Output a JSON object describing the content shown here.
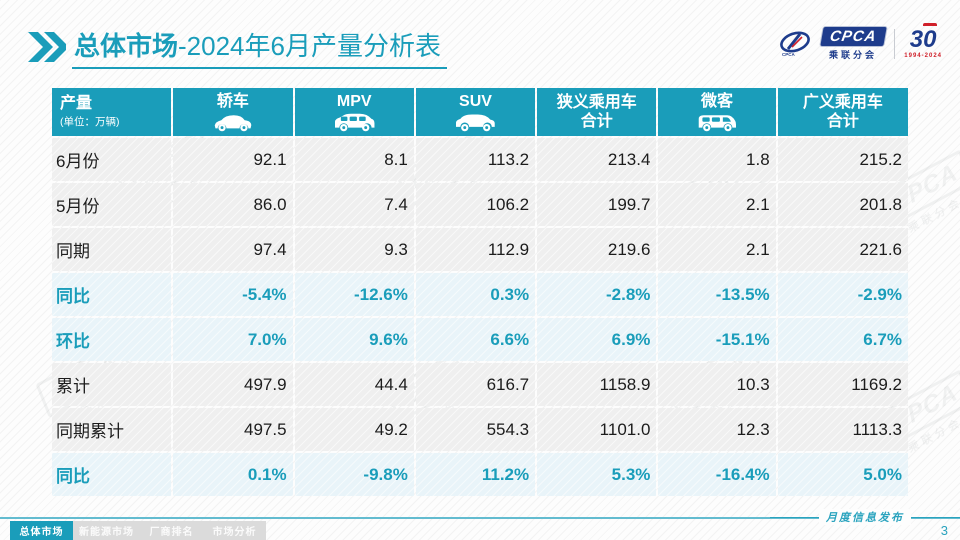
{
  "header": {
    "title_bold": "总体市场",
    "title_rest": "-2024年6月产量分析表",
    "logo": {
      "cpca": "CPCA",
      "cpca_sub": "乘联分会",
      "anniversary_3": "3",
      "anniversary_0": "0",
      "anniversary_sub": "1994-2024"
    }
  },
  "table": {
    "corner": {
      "title": "产量",
      "subtitle": "(单位：万辆)"
    },
    "columns": [
      {
        "label": "轿车",
        "icon": "sedan-icon"
      },
      {
        "label": "MPV",
        "icon": "mpv-icon"
      },
      {
        "label": "SUV",
        "icon": "suv-icon"
      },
      {
        "label": "狭义乘用车",
        "label2": "合计"
      },
      {
        "label": "微客",
        "icon": "microvan-icon"
      },
      {
        "label": "广义乘用车",
        "label2": "合计"
      }
    ],
    "rows": [
      {
        "label": "6月份",
        "type": "plain",
        "values": [
          "92.1",
          "8.1",
          "113.2",
          "213.4",
          "1.8",
          "215.2"
        ]
      },
      {
        "label": "5月份",
        "type": "plain",
        "values": [
          "86.0",
          "7.4",
          "106.2",
          "199.7",
          "2.1",
          "201.8"
        ]
      },
      {
        "label": "同期",
        "type": "plain",
        "values": [
          "97.4",
          "9.3",
          "112.9",
          "219.6",
          "2.1",
          "221.6"
        ]
      },
      {
        "label": "同比",
        "type": "pct",
        "values": [
          "-5.4%",
          "-12.6%",
          "0.3%",
          "-2.8%",
          "-13.5%",
          "-2.9%"
        ]
      },
      {
        "label": "环比",
        "type": "pct",
        "values": [
          "7.0%",
          "9.6%",
          "6.6%",
          "6.9%",
          "-15.1%",
          "6.7%"
        ]
      },
      {
        "label": "累计",
        "type": "plain",
        "values": [
          "497.9",
          "44.4",
          "616.7",
          "1158.9",
          "10.3",
          "1169.2"
        ]
      },
      {
        "label": "同期累计",
        "type": "plain",
        "values": [
          "497.5",
          "49.2",
          "554.3",
          "1101.0",
          "12.3",
          "1113.3"
        ]
      },
      {
        "label": "同比",
        "type": "pct",
        "values": [
          "0.1%",
          "-9.8%",
          "11.2%",
          "5.3%",
          "-16.4%",
          "5.0%"
        ]
      }
    ]
  },
  "watermark": {
    "text": "CPCA",
    "sub": "乘联分会"
  },
  "footer": {
    "tabs": [
      {
        "label": "总体市场",
        "active": true
      },
      {
        "label": "新能源市场",
        "active": false
      },
      {
        "label": "厂商排名",
        "active": false
      },
      {
        "label": "市场分析",
        "active": false
      }
    ],
    "release_label": "月度信息发布",
    "page_number": "3"
  },
  "colors": {
    "accent": "#1A9DBA",
    "header_bg": "#1A9DBA",
    "pct_row_bg": "#E9F4F9",
    "plain_row_bg": "#EFEFEF",
    "footer_line": "#63BCD0",
    "logo_blue": "#1E3C8C",
    "logo_red": "#D0202A"
  }
}
